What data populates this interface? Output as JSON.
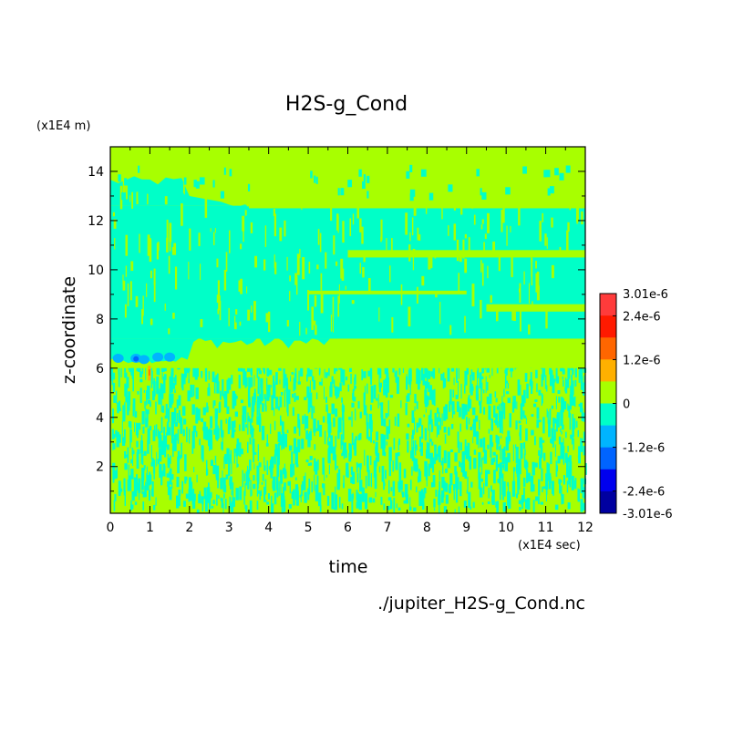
{
  "chart_data": {
    "type": "heatmap",
    "title": "H2S-g_Cond",
    "xlabel": "time",
    "ylabel": "z-coordinate",
    "x_unit": "(x1E4 sec)",
    "y_unit": "(x1E4 m)",
    "source_file": "./jupiter_H2S-g_Cond.nc",
    "xlim": [
      0,
      12
    ],
    "ylim": [
      0.1,
      15
    ],
    "x_ticks": [
      "0",
      "1",
      "2",
      "3",
      "4",
      "5",
      "6",
      "7",
      "8",
      "9",
      "10",
      "11",
      "12"
    ],
    "y_ticks": [
      "2",
      "4",
      "6",
      "8",
      "10",
      "12",
      "14"
    ],
    "colorbar": {
      "labels": [
        "3.01e-6",
        "2.4e-6",
        "1.2e-6",
        "0",
        "-1.2e-6",
        "-2.4e-6",
        "-3.01e-6"
      ],
      "levels": [
        3.01e-06,
        2.4e-06,
        1.2e-06,
        0,
        -1.2e-06,
        -2.4e-06,
        -3.01e-06
      ],
      "colors": [
        "#ff3b3b",
        "#ff1a00",
        "#ff6600",
        "#ffb000",
        "#a8ff00",
        "#00ffc8",
        "#00b4ff",
        "#0064ff",
        "#0000ee",
        "#0000a0"
      ]
    },
    "regions": [
      {
        "z_range": [
          13.5,
          15
        ],
        "value": 0,
        "desc": "near-zero"
      },
      {
        "z_range": [
          12.5,
          13.5
        ],
        "value": -6e-07,
        "desc": "slight negative band"
      },
      {
        "z_range": [
          7.2,
          12.5
        ],
        "value": -6e-07,
        "desc": "slight negative"
      },
      {
        "z_range": [
          6.0,
          7.2
        ],
        "value": 0,
        "desc": "near-zero band"
      },
      {
        "z_range": [
          0.1,
          6.0
        ],
        "value": "mixed",
        "desc": "alternating 0 and slight negative"
      }
    ]
  },
  "colors": {
    "zero": "#a8ff00",
    "neg_small": "#00ffc8",
    "neg_mid": "#00b4ff",
    "neg_large": "#0064ff",
    "pos_small": "#ffb000",
    "pos_mid": "#ff6600"
  }
}
